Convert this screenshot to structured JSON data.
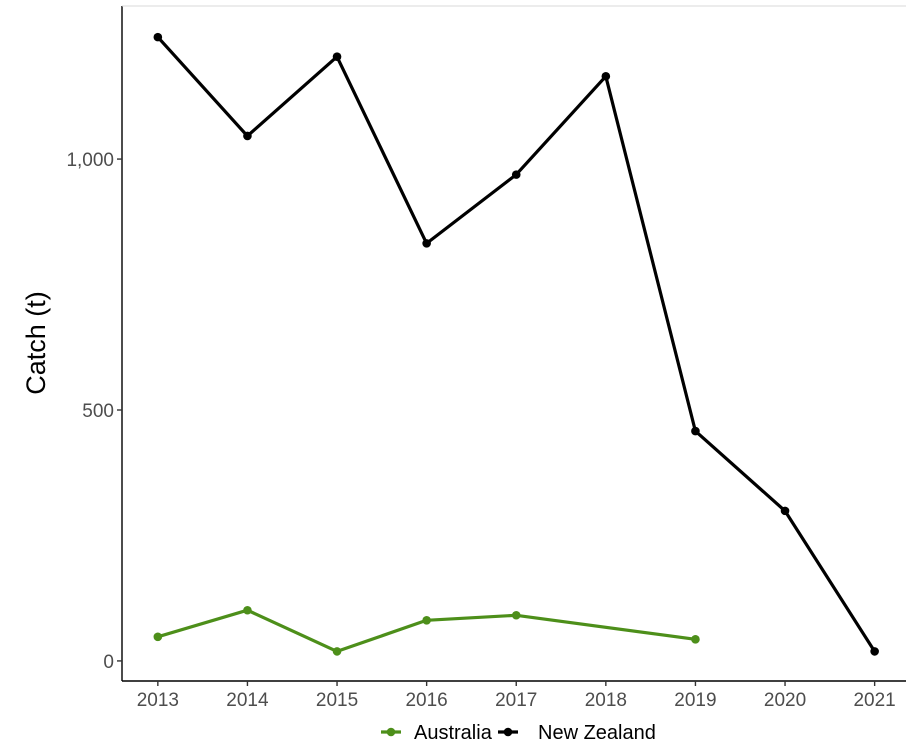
{
  "chart_data": {
    "type": "line",
    "title": "",
    "xlabel": "",
    "ylabel": "Catch (t)",
    "x": [
      2013,
      2014,
      2015,
      2016,
      2017,
      2018,
      2019,
      2020,
      2021
    ],
    "x_tick_labels": [
      "2013",
      "2014",
      "2015",
      "2016",
      "2017",
      "2018",
      "2019",
      "2020",
      "2021"
    ],
    "y_ticks": [
      0,
      500,
      1000
    ],
    "y_tick_labels": [
      "0",
      "500",
      "1,000"
    ],
    "xlim": [
      2012.6,
      2021.35
    ],
    "ylim": [
      -40,
      1305
    ],
    "grid": false,
    "legend_position": "bottom",
    "series": [
      {
        "name": "Australia",
        "color": "#4d8f1a",
        "points": [
          {
            "x": 2013,
            "y": 48
          },
          {
            "x": 2014,
            "y": 101
          },
          {
            "x": 2015,
            "y": 19
          },
          {
            "x": 2016,
            "y": 81
          },
          {
            "x": 2017,
            "y": 91
          },
          {
            "x": 2019,
            "y": 43
          }
        ]
      },
      {
        "name": "New Zealand",
        "color": "#000000",
        "points": [
          {
            "x": 2013,
            "y": 1243
          },
          {
            "x": 2014,
            "y": 1046
          },
          {
            "x": 2015,
            "y": 1204
          },
          {
            "x": 2016,
            "y": 832
          },
          {
            "x": 2017,
            "y": 969
          },
          {
            "x": 2018,
            "y": 1165
          },
          {
            "x": 2019,
            "y": 458
          },
          {
            "x": 2020,
            "y": 299
          },
          {
            "x": 2021,
            "y": 19
          }
        ]
      }
    ]
  }
}
